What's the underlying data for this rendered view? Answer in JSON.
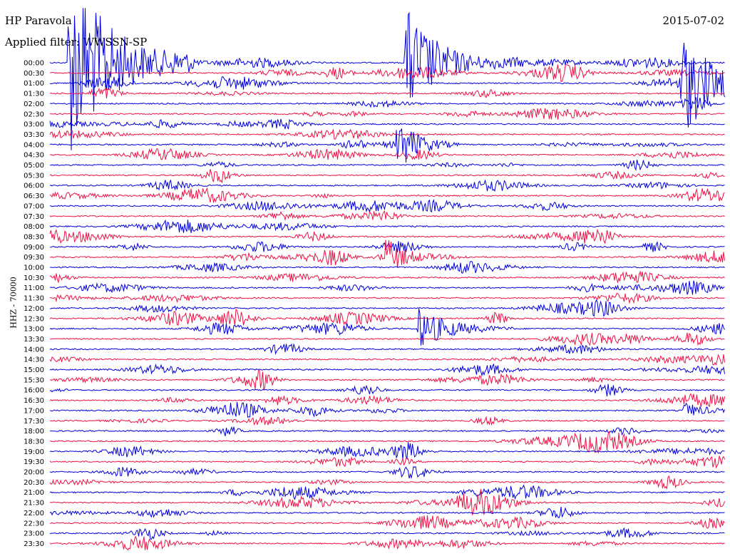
{
  "header": {
    "station": "HP Paravola",
    "filter": "Applied filter: WWSSN-SP",
    "date": "2015-07-02",
    "channel_label": "HHZ - 70000"
  },
  "chart_data": {
    "type": "line",
    "title": "HP Paravola",
    "subtitle": "Applied filter: WWSSN-SP",
    "ylabel": "HHZ - 70000",
    "categories": [
      "00:00",
      "00:30",
      "01:00",
      "01:30",
      "02:00",
      "02:30",
      "03:00",
      "03:30",
      "04:00",
      "04:30",
      "05:00",
      "05:30",
      "06:00",
      "06:30",
      "07:00",
      "07:30",
      "08:00",
      "08:30",
      "09:00",
      "09:30",
      "10:00",
      "10:30",
      "11:00",
      "11:30",
      "12:00",
      "12:30",
      "13:00",
      "13:30",
      "14:00",
      "14:30",
      "15:00",
      "15:30",
      "16:00",
      "16:30",
      "17:00",
      "17:30",
      "18:00",
      "18:30",
      "19:00",
      "19:30",
      "20:00",
      "20:30",
      "21:00",
      "21:30",
      "22:00",
      "22:30",
      "23:00",
      "23:30"
    ],
    "colors": {
      "even_rows": "#0000dd",
      "odd_rows": "#ee1144"
    },
    "events": [
      {
        "row": 0,
        "x": 95,
        "amp": 140,
        "dur": 60
      },
      {
        "row": 0,
        "x": 567,
        "amp": 85,
        "dur": 45
      },
      {
        "row": 2,
        "x": 955,
        "amp": 70,
        "dur": 45
      },
      {
        "row": 8,
        "x": 555,
        "amp": 40,
        "dur": 30
      },
      {
        "row": 19,
        "x": 540,
        "amp": 20,
        "dur": 40
      },
      {
        "row": 26,
        "x": 585,
        "amp": 30,
        "dur": 45
      },
      {
        "row": 34,
        "x": 958,
        "amp": 12,
        "dur": 30
      }
    ]
  }
}
